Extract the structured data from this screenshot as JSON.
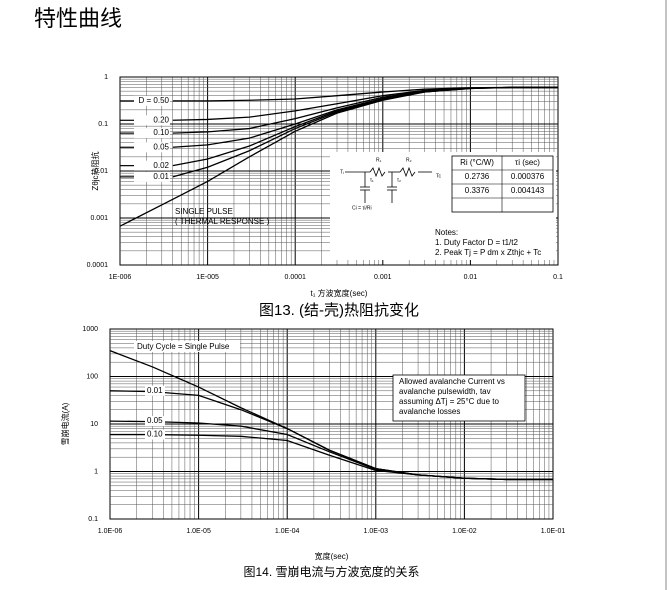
{
  "header": {
    "title": "特性曲线"
  },
  "chart_data": [
    {
      "type": "line",
      "log_x": true,
      "log_y": true,
      "grid": true,
      "ylabel": "Zθjc热阻抗",
      "xlabel": "t₁ 方波宽度(sec)",
      "caption": "图13.   (结-壳)热阻抗变化",
      "x": [
        1e-06,
        4e-06,
        1e-05,
        3e-05,
        0.0001,
        0.0003,
        0.001,
        0.003,
        0.01,
        0.03,
        0.1
      ],
      "series": [
        {
          "name": "D = 0.50",
          "color": "#000000",
          "values": [
            null,
            0.31,
            0.31,
            0.32,
            0.34,
            0.4,
            0.48,
            0.55,
            0.59,
            0.6,
            0.6
          ]
        },
        {
          "name": "0.20",
          "color": "#000000",
          "values": [
            null,
            0.12,
            0.125,
            0.14,
            0.19,
            0.27,
            0.4,
            0.52,
            0.58,
            0.6,
            0.6
          ]
        },
        {
          "name": "0.10",
          "color": "#000000",
          "values": [
            null,
            0.064,
            0.068,
            0.08,
            0.13,
            0.22,
            0.37,
            0.51,
            0.58,
            0.6,
            0.6
          ]
        },
        {
          "name": "0.05",
          "color": "#000000",
          "values": [
            null,
            0.032,
            0.036,
            0.05,
            0.1,
            0.2,
            0.35,
            0.5,
            0.58,
            0.6,
            0.6
          ]
        },
        {
          "name": "0.02",
          "color": "#000000",
          "values": [
            null,
            0.013,
            0.018,
            0.034,
            0.088,
            0.19,
            0.34,
            0.49,
            0.58,
            0.6,
            0.6
          ]
        },
        {
          "name": "0.01",
          "color": "#000000",
          "values": [
            null,
            0.0075,
            0.012,
            0.027,
            0.08,
            0.18,
            0.33,
            0.48,
            0.57,
            0.6,
            0.6
          ]
        },
        {
          "name": "SINGLE PULSE",
          "color": "#000000",
          "values": [
            0.00067,
            0.0025,
            0.006,
            0.02,
            0.07,
            0.17,
            0.32,
            0.48,
            0.57,
            0.6,
            0.6
          ]
        }
      ],
      "annotation": "( THERMAL RESPONSE )",
      "xlim": [
        1e-06,
        0.1
      ],
      "ylim": [
        0.0001,
        1
      ],
      "xticks": [
        {
          "value": 1e-06,
          "label": "1E-006"
        },
        {
          "value": 1e-05,
          "label": "1E-005"
        },
        0.0001,
        0.001,
        0.01,
        0.1
      ],
      "yticks": [
        0.0001,
        0.001,
        0.01,
        0.1,
        1
      ],
      "circuit_labels": [
        "R₁",
        "R₂",
        "Tⱼ",
        "Tc",
        "τ₁",
        "τ₂",
        "Ci = τi/Ri"
      ],
      "inset_table": {
        "header": [
          "Ri (°C/W)",
          "τi (sec)"
        ],
        "rows": [
          [
            "0.2736",
            "0.000376"
          ],
          [
            "0.3376",
            "0.004143"
          ]
        ]
      },
      "notes": [
        "Notes:",
        "1. Duty Factor D = t1/t2",
        "2. Peak Tj = P dm x Zthjc + Tc"
      ]
    },
    {
      "type": "line",
      "log_x": true,
      "log_y": true,
      "grid": true,
      "ylabel": "雪崩电流(A)",
      "xlabel": "宽度(sec)",
      "caption": "图14. 雪崩电流与方波宽度的关系",
      "x": [
        1e-06,
        3e-06,
        1e-05,
        3e-05,
        0.0001,
        0.0003,
        0.001,
        0.003,
        0.01,
        0.03,
        0.1
      ],
      "series": [
        {
          "name": "Duty Cycle = Single Pulse",
          "color": "#000000",
          "values": [
            350,
            160,
            60,
            22,
            8,
            2.8,
            1.15,
            0.85,
            0.72,
            0.68,
            0.68
          ]
        },
        {
          "name": "0.01",
          "color": "#000000",
          "values": [
            50,
            48,
            40,
            20,
            8,
            2.8,
            1.15,
            0.85,
            0.72,
            0.68,
            0.68
          ]
        },
        {
          "name": "0.05",
          "color": "#000000",
          "values": [
            11.5,
            11.2,
            10.5,
            9,
            6,
            2.6,
            1.1,
            0.85,
            0.72,
            0.68,
            0.68
          ]
        },
        {
          "name": "0.10",
          "color": "#000000",
          "values": [
            6,
            6,
            5.8,
            5.5,
            4.5,
            2.2,
            1.05,
            0.85,
            0.72,
            0.68,
            0.68
          ]
        }
      ],
      "annotation": [
        "Allowed avalanche Current vs",
        "avalanche pulsewidth, tav",
        "assuming ΔTj = 25°C due to",
        "avalanche losses"
      ],
      "xlim": [
        1e-06,
        0.1
      ],
      "ylim": [
        0.1,
        1000
      ],
      "xticks": [
        {
          "value": 1e-06,
          "label": "1.0E-06"
        },
        {
          "value": 1e-05,
          "label": "1.0E-05"
        },
        {
          "value": 0.0001,
          "label": "1.0E-04"
        },
        {
          "value": 0.001,
          "label": "1.0E-03"
        },
        {
          "value": 0.01,
          "label": "1.0E-02"
        },
        {
          "value": 0.1,
          "label": "1.0E-01"
        }
      ],
      "yticks": [
        0.1,
        1,
        10,
        100,
        1000
      ]
    }
  ]
}
